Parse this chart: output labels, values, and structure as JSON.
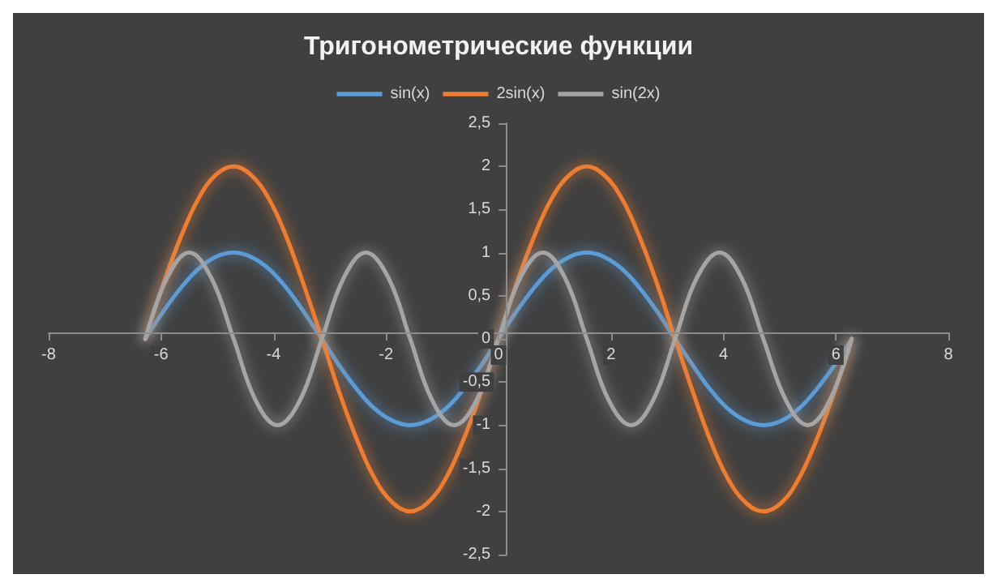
{
  "chart_data": {
    "type": "line",
    "title": "Тригонометрические функции",
    "legend": "top",
    "marker": "none",
    "line_style": "solid",
    "grid": false,
    "x": [
      -6.28,
      -5.97,
      -5.65,
      -5.34,
      -5.03,
      -4.71,
      -4.4,
      -4.08,
      -3.77,
      -3.46,
      -3.14,
      -2.83,
      -2.51,
      -2.2,
      -1.88,
      -1.57,
      -1.26,
      -0.94,
      -0.63,
      -0.31,
      0,
      0.31,
      0.63,
      0.94,
      1.26,
      1.57,
      1.88,
      2.2,
      2.51,
      2.83,
      3.14,
      3.46,
      3.77,
      4.08,
      4.4,
      4.71,
      5.03,
      5.34,
      5.65,
      5.97,
      6.28
    ],
    "series": [
      {
        "name": "sin(x)",
        "color": "#5b9bd5",
        "values": [
          0,
          0.31,
          0.59,
          0.81,
          0.95,
          1,
          0.95,
          0.81,
          0.59,
          0.31,
          0,
          -0.31,
          -0.59,
          -0.81,
          -0.95,
          -1,
          -0.95,
          -0.81,
          -0.59,
          -0.31,
          0,
          0.31,
          0.59,
          0.81,
          0.95,
          1,
          0.95,
          0.81,
          0.59,
          0.31,
          0,
          -0.31,
          -0.59,
          -0.81,
          -0.95,
          -1,
          -0.95,
          -0.81,
          -0.59,
          -0.31,
          0
        ]
      },
      {
        "name": "2sin(x)",
        "color": "#ed7d31",
        "values": [
          0,
          0.62,
          1.18,
          1.62,
          1.9,
          2,
          1.9,
          1.62,
          1.18,
          0.62,
          0,
          -0.62,
          -1.18,
          -1.62,
          -1.9,
          -2,
          -1.9,
          -1.62,
          -1.18,
          -0.62,
          0,
          0.62,
          1.18,
          1.62,
          1.9,
          2,
          1.9,
          1.62,
          1.18,
          0.62,
          0,
          -0.62,
          -1.18,
          -1.62,
          -1.9,
          -2,
          -1.9,
          -1.62,
          -1.18,
          -0.62,
          0
        ]
      },
      {
        "name": "sin(2x)",
        "color": "#a5a5a5",
        "x": [
          -6.28,
          -5.89,
          -5.5,
          -5.11,
          -4.71,
          -4.32,
          -3.93,
          -3.53,
          -3.14,
          -2.75,
          -2.36,
          -1.96,
          -1.57,
          -1.18,
          -0.79,
          -0.39,
          0,
          0.39,
          0.79,
          1.18,
          1.57,
          1.96,
          2.36,
          2.75,
          3.14,
          3.53,
          3.93,
          4.32,
          4.71,
          5.11,
          5.5,
          5.89,
          6.28
        ],
        "values": [
          0,
          0.71,
          1,
          0.71,
          0,
          -0.71,
          -1,
          -0.71,
          0,
          0.71,
          1,
          0.71,
          0,
          -0.71,
          -1,
          -0.71,
          0,
          0.71,
          1,
          0.71,
          0,
          -0.71,
          -1,
          -0.71,
          0,
          0.71,
          1,
          0.71,
          0,
          -0.71,
          -1,
          -0.71,
          0
        ]
      }
    ],
    "xlim": [
      -8,
      8
    ],
    "xticks": [
      -8,
      -6,
      -4,
      -2,
      0,
      2,
      4,
      6,
      8
    ],
    "ylim": [
      -2.5,
      2.5
    ],
    "yticks": [
      {
        "value": -2.5,
        "label": "-2,5"
      },
      -2,
      {
        "value": -1.5,
        "label": "-1,5"
      },
      -1,
      {
        "value": -0.5,
        "label": "-0,5"
      },
      0,
      {
        "value": 0.5,
        "label": "0,5"
      },
      1,
      {
        "value": 1.5,
        "label": "1,5"
      },
      2,
      {
        "value": 2.5,
        "label": "2,5"
      }
    ]
  }
}
